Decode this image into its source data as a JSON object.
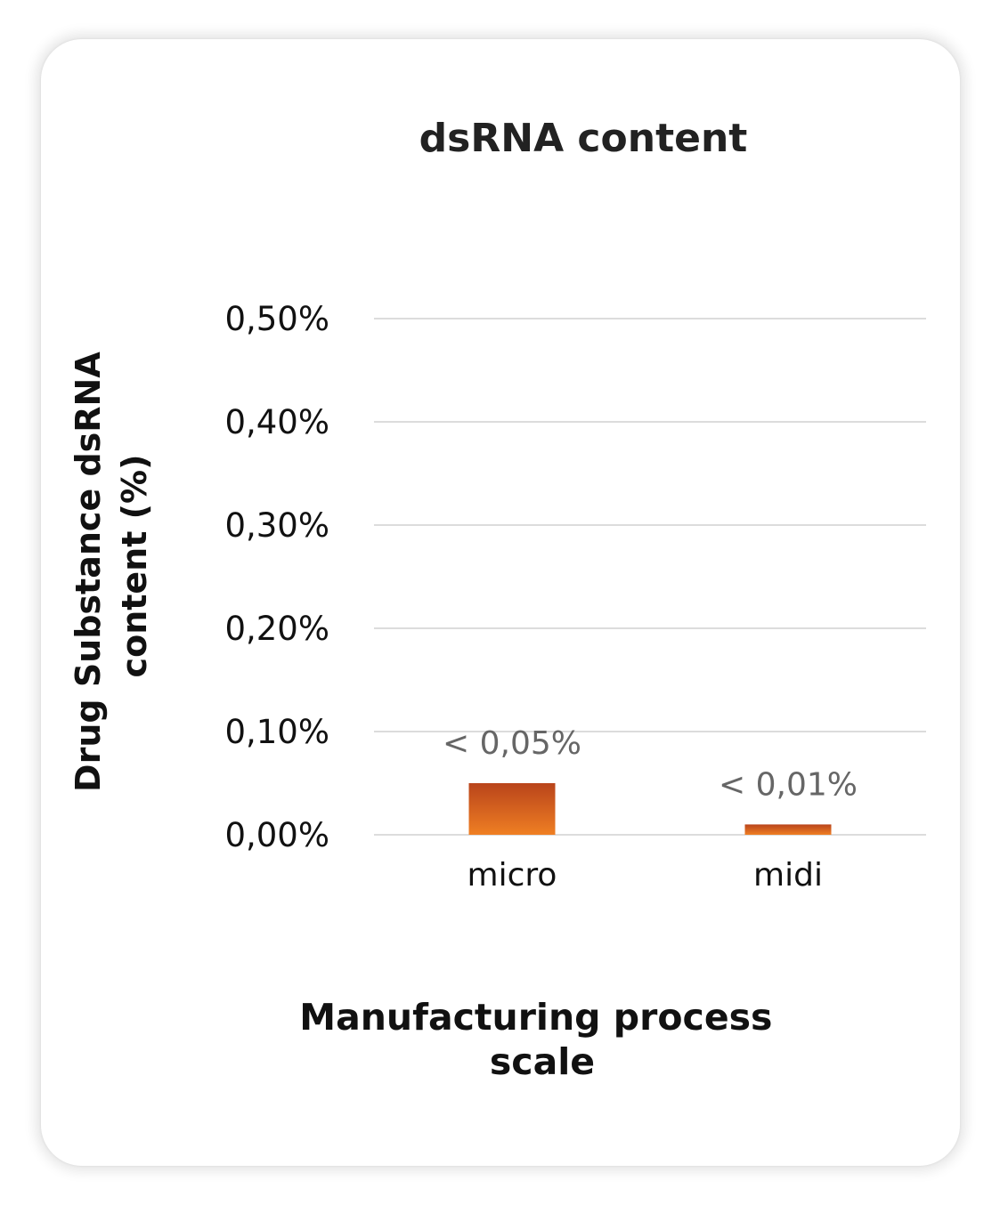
{
  "chart_data": {
    "type": "bar",
    "title": "dsRNA content",
    "ylabel_lines": [
      "Drug Substance  dsRNA",
      "content (%)"
    ],
    "xlabel_lines": [
      "Manufacturing process",
      "scale"
    ],
    "categories": [
      "micro",
      "midi"
    ],
    "values": [
      0.05,
      0.01
    ],
    "data_labels": [
      "< 0,05%",
      "< 0,01%"
    ],
    "ylim": [
      0,
      0.5
    ],
    "yticks": [
      0,
      0.1,
      0.2,
      0.3,
      0.4,
      0.5
    ],
    "ytick_labels": [
      "0,00%",
      "0,10%",
      "0,20%",
      "0,30%",
      "0,40%",
      "0,50%"
    ],
    "grid": true,
    "legend": "none",
    "unit": "percent"
  },
  "colors": {
    "bar_top": "#b9441b",
    "bar_bottom": "#ef7f23"
  }
}
